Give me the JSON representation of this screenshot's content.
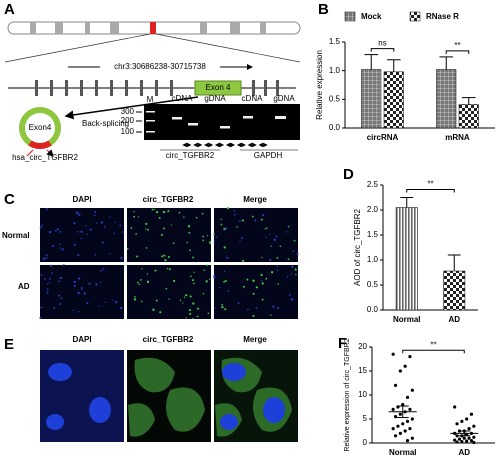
{
  "panel_a": {
    "label": "A",
    "locus": "chr3:30686238-30715738",
    "exon": "Exon 4",
    "circle_exon": "Exon4",
    "back_splicing": "Back-splicing",
    "circ_name": "hsa_circ_TGFBR2",
    "gel": {
      "marker": "M",
      "lanes": [
        "cDNA",
        "gDNA",
        "cDNA",
        "gDNA"
      ],
      "sizes": [
        "300",
        "200",
        "100"
      ],
      "genes": [
        "circ_TGFBR2",
        "GAPDH"
      ]
    }
  },
  "panel_c": {
    "label": "C",
    "columns": [
      "DAPI",
      "circ_TGFBR2",
      "Merge"
    ],
    "rows": [
      "Normal",
      "AD"
    ]
  },
  "panel_e": {
    "label": "E",
    "columns": [
      "DAPI",
      "circ_TGFBR2",
      "Merge"
    ]
  },
  "chart_data": [
    {
      "type": "bar",
      "panel": "B",
      "ylabel": "Relative expression",
      "categories": [
        "circRNA",
        "mRNA"
      ],
      "series": [
        {
          "name": "Mock",
          "pattern": "grid",
          "values": [
            1.02,
            1.02
          ],
          "errors": [
            0.26,
            0.22
          ]
        },
        {
          "name": "RNase R",
          "pattern": "check",
          "values": [
            0.98,
            0.41
          ],
          "errors": [
            0.21,
            0.12
          ]
        }
      ],
      "annotations": [
        "ns",
        "**"
      ],
      "ylim": [
        0,
        1.5
      ],
      "yticks": [
        {
          "value": 0,
          "label": "0.0"
        },
        {
          "value": 0.5,
          "label": "0.5"
        },
        {
          "value": 1,
          "label": "1.0"
        },
        {
          "value": 1.5,
          "label": "1.5"
        }
      ]
    },
    {
      "type": "bar",
      "panel": "D",
      "ylabel": "AOD of circ_TGFBR2",
      "categories": [
        "Normal",
        "AD"
      ],
      "patterns": [
        "lines",
        "check"
      ],
      "values": [
        2.05,
        0.78
      ],
      "errors": [
        0.2,
        0.32
      ],
      "annotation": "**",
      "ylim": [
        0,
        2.5
      ],
      "yticks": [
        {
          "value": 0,
          "label": "0.0"
        },
        {
          "value": 0.5,
          "label": "0.5"
        },
        {
          "value": 1,
          "label": "1.0"
        },
        {
          "value": 1.5,
          "label": "1.5"
        },
        {
          "value": 2,
          "label": "2.0"
        },
        {
          "value": 2.5,
          "label": "2.5"
        }
      ]
    },
    {
      "type": "scatter",
      "panel": "F",
      "ylabel": "Relative expression of circ_TGFBR2",
      "categories": [
        "Normal",
        "AD"
      ],
      "points": [
        [
          18.5,
          18,
          16,
          15,
          12,
          11,
          9.5,
          8,
          7.5,
          7,
          7,
          6.5,
          6,
          5.5,
          5,
          4.5,
          4,
          3.5,
          3,
          3,
          2.5,
          2,
          1.5,
          1,
          0.5
        ],
        [
          7.5,
          6,
          5,
          4.5,
          4,
          3.5,
          3,
          2.5,
          2.5,
          2,
          2,
          1.8,
          1.5,
          1.5,
          1.2,
          1,
          1,
          0.8,
          0.6,
          0.5,
          0.4,
          0.3,
          0.2,
          0.1
        ]
      ],
      "means": [
        6.5,
        2.0
      ],
      "errors": [
        1.2,
        0.5
      ],
      "annotation": "**",
      "ylim": [
        0,
        20
      ],
      "yticks": [
        0,
        5,
        10,
        15,
        20
      ]
    }
  ]
}
